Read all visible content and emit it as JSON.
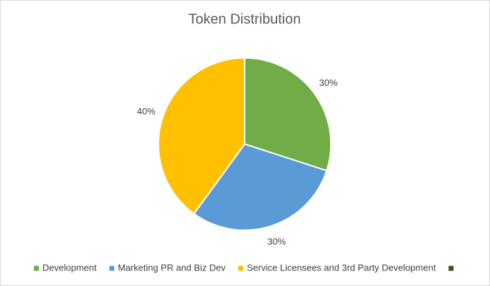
{
  "chart_data": {
    "type": "pie",
    "title": "Token Distribution",
    "categories": [
      "Development",
      "Marketing PR and Biz Dev",
      "Service Licensees and 3rd Party Development",
      null
    ],
    "values": [
      30,
      30,
      40,
      0
    ],
    "value_labels": [
      "30%",
      "30%",
      "40%",
      null
    ],
    "colors": [
      "#70ad47",
      "#5b9bd5",
      "#ffc000",
      "#375623"
    ],
    "legend": "bottom"
  }
}
